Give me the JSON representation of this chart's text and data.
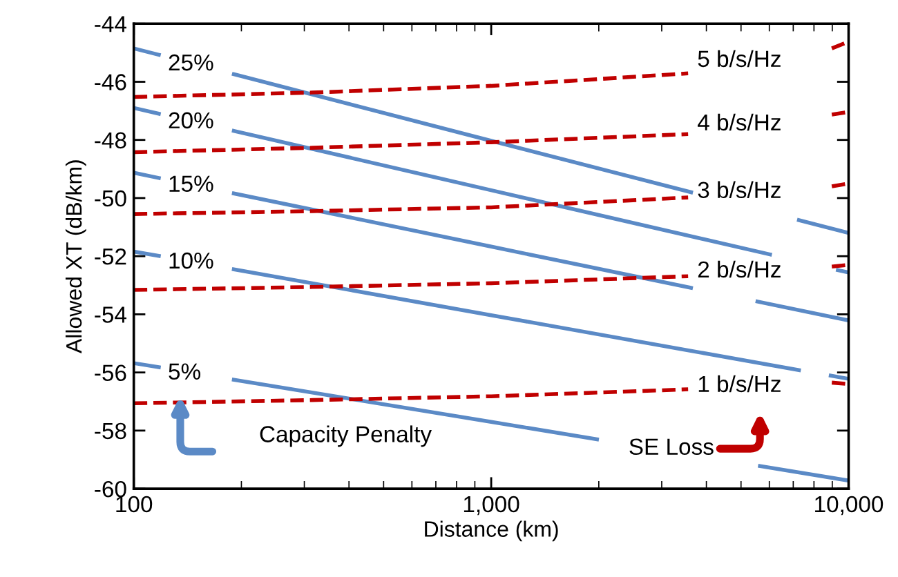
{
  "chart_data": {
    "type": "line",
    "xlabel": "Distance (km)",
    "ylabel": "Allowed XT (dB/km)",
    "log": "x",
    "grid": false,
    "legend": false,
    "marker": "none",
    "xlim": [
      100,
      10000
    ],
    "xticks": [
      100,
      {
        "value": 1000,
        "label": "1,000"
      },
      {
        "value": 10000,
        "label": "10,000"
      }
    ],
    "ylim": [
      -60,
      -44
    ],
    "yticks": [
      -60,
      -58,
      -56,
      -54,
      -52,
      -50,
      -48,
      -46,
      -44
    ],
    "series": [
      {
        "name": "25%",
        "color": "#5b8ac6",
        "line_style": "solid",
        "x": [
          100,
          117.5,
          150,
          190.5,
          1000,
          3624,
          5000,
          7261,
          10000
        ],
        "values": [
          -44.85,
          -45.07,
          null,
          -45.74,
          -48.03,
          -49.8,
          null,
          -50.76,
          -51.2
        ]
      },
      {
        "name": "20%",
        "color": "#5b8ac6",
        "line_style": "solid",
        "x": [
          100,
          117.5,
          150,
          190.5,
          1000,
          6026,
          7500,
          9333,
          10000
        ],
        "values": [
          -46.9,
          -47.1,
          null,
          -47.69,
          -49.73,
          -51.94,
          null,
          -52.48,
          -52.56
        ]
      },
      {
        "name": "15%",
        "color": "#5b8ac6",
        "line_style": "solid",
        "x": [
          100,
          117.5,
          150,
          190.5,
          1000,
          3622,
          4500,
          5559,
          10000
        ],
        "values": [
          -49.13,
          -49.31,
          null,
          -49.84,
          -51.67,
          -53.09,
          null,
          -53.56,
          -54.21
        ]
      },
      {
        "name": "10%",
        "color": "#5b8ac6",
        "line_style": "solid",
        "x": [
          100,
          117.5,
          150,
          190.5,
          1000,
          7261,
          8000,
          8913,
          10000
        ],
        "values": [
          -51.84,
          -51.99,
          null,
          -52.45,
          -54.03,
          -55.92,
          null,
          -56.11,
          -56.22
        ]
      },
      {
        "name": "5%",
        "color": "#5b8ac6",
        "line_style": "solid",
        "x": [
          100,
          117.5,
          150,
          190.5,
          1000,
          1977,
          3300,
          5649,
          10000
        ],
        "values": [
          -55.68,
          -55.82,
          null,
          -56.25,
          -57.7,
          -58.3,
          null,
          -59.22,
          -59.72
        ]
      },
      {
        "name": "5 b/s/Hz",
        "color": "#c00000",
        "line_style": "dashed",
        "x": [
          100,
          316,
          1000,
          3556,
          5600,
          8974,
          10000
        ],
        "values": [
          -46.52,
          -46.37,
          -46.14,
          -45.71,
          null,
          -44.85,
          -44.62
        ]
      },
      {
        "name": "4 b/s/Hz",
        "color": "#c00000",
        "line_style": "dashed",
        "x": [
          100,
          316,
          1000,
          3556,
          5600,
          8974,
          10000
        ],
        "values": [
          -48.42,
          -48.27,
          -48.08,
          -47.8,
          null,
          -47.13,
          -47.04
        ]
      },
      {
        "name": "3 b/s/Hz",
        "color": "#c00000",
        "line_style": "dashed",
        "x": [
          100,
          316,
          1000,
          3556,
          5600,
          8974,
          10000
        ],
        "values": [
          -50.55,
          -50.45,
          -50.32,
          -49.98,
          null,
          -49.6,
          -49.5
        ]
      },
      {
        "name": "2 b/s/Hz",
        "color": "#c00000",
        "line_style": "dashed",
        "x": [
          100,
          316,
          1000,
          3556,
          5600,
          8974,
          10000
        ],
        "values": [
          -53.16,
          -53.06,
          -52.93,
          -52.69,
          null,
          -52.36,
          -52.3
        ]
      },
      {
        "name": "1 b/s/Hz",
        "color": "#c00000",
        "line_style": "dashed",
        "x": [
          100,
          316,
          1000,
          3556,
          5600,
          8974,
          10000
        ],
        "values": [
          -57.06,
          -56.95,
          -56.82,
          -56.58,
          null,
          -56.35,
          -56.4
        ]
      }
    ],
    "annotations": [
      "Capacity Penalty",
      "SE Loss"
    ]
  }
}
